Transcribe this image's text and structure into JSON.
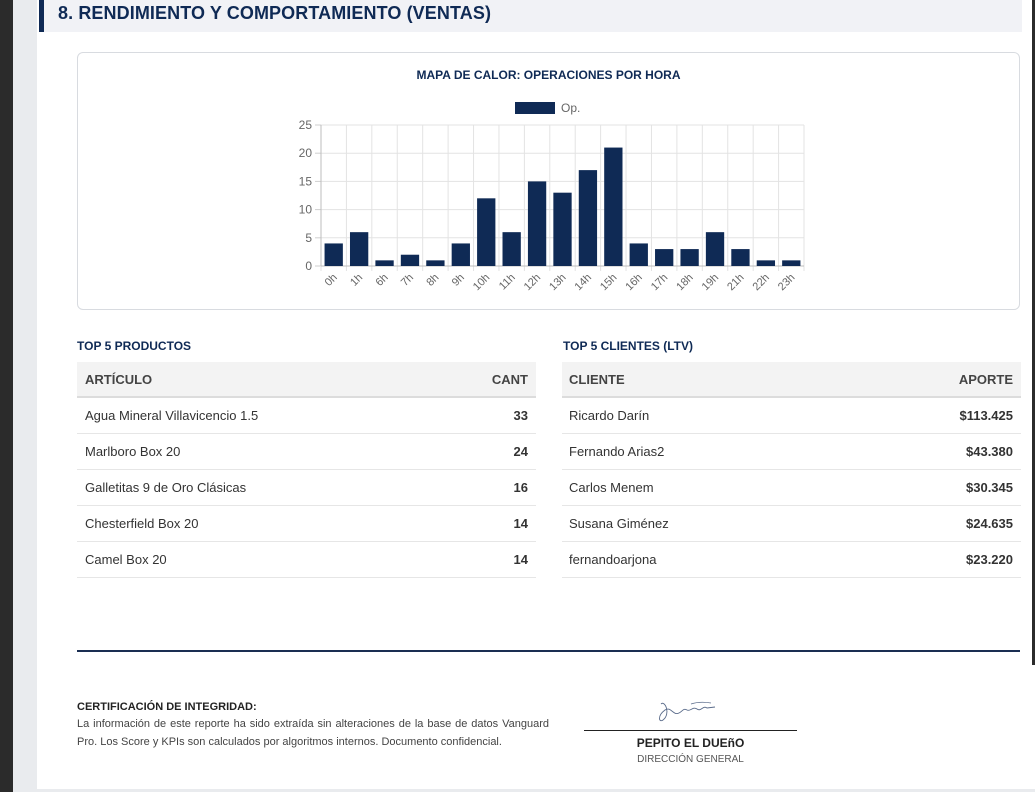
{
  "section": {
    "title": "8. RENDIMIENTO Y COMPORTAMIENTO (VENTAS)"
  },
  "chart_data": {
    "type": "bar",
    "title": "MAPA DE CALOR: OPERACIONES POR HORA",
    "categories": [
      "0h",
      "1h",
      "6h",
      "7h",
      "8h",
      "9h",
      "10h",
      "11h",
      "12h",
      "13h",
      "14h",
      "15h",
      "16h",
      "17h",
      "18h",
      "19h",
      "21h",
      "22h",
      "23h"
    ],
    "series": [
      {
        "name": "Op.",
        "values": [
          4,
          6,
          1,
          2,
          1,
          4,
          12,
          6,
          15,
          13,
          17,
          21,
          4,
          3,
          3,
          6,
          3,
          1,
          1
        ]
      }
    ],
    "yticks": [
      "0",
      "5",
      "10",
      "15",
      "20",
      "25"
    ],
    "ylim": [
      0,
      25
    ],
    "legend": "top-center",
    "grid": true,
    "bar_color": "#0f2a55"
  },
  "products": {
    "title": "TOP 5 PRODUCTOS",
    "headers": {
      "item": "ARTÍCULO",
      "qty": "CANT"
    },
    "rows": [
      {
        "name": "Agua Mineral Villavicencio 1.5",
        "qty": "33"
      },
      {
        "name": "Marlboro Box 20",
        "qty": "24"
      },
      {
        "name": "Galletitas 9 de Oro Clásicas",
        "qty": "16"
      },
      {
        "name": "Chesterfield Box 20",
        "qty": "14"
      },
      {
        "name": "Camel Box 20",
        "qty": "14"
      }
    ]
  },
  "clients": {
    "title": "TOP 5 CLIENTES (LTV)",
    "headers": {
      "client": "CLIENTE",
      "amount": "APORTE"
    },
    "rows": [
      {
        "name": "Ricardo Darín",
        "amount": "$113.425"
      },
      {
        "name": "Fernando Arias2",
        "amount": "$43.380"
      },
      {
        "name": "Carlos Menem",
        "amount": "$30.345"
      },
      {
        "name": "Susana Giménez",
        "amount": "$24.635"
      },
      {
        "name": "fernandoarjona",
        "amount": "$23.220"
      }
    ]
  },
  "certification": {
    "title": "CERTIFICACIÓN DE INTEGRIDAD:",
    "text": "La información de este reporte ha sido extraída sin alteraciones de la base de datos Vanguard Pro. Los Score y KPIs son calculados por algoritmos internos. Documento confidencial."
  },
  "signature": {
    "name": "PEPITO EL DUEñO",
    "role": "DIRECCIÓN GENERAL"
  },
  "colors": {
    "navy": "#0f2a55",
    "money_green": "#1e8c45"
  }
}
